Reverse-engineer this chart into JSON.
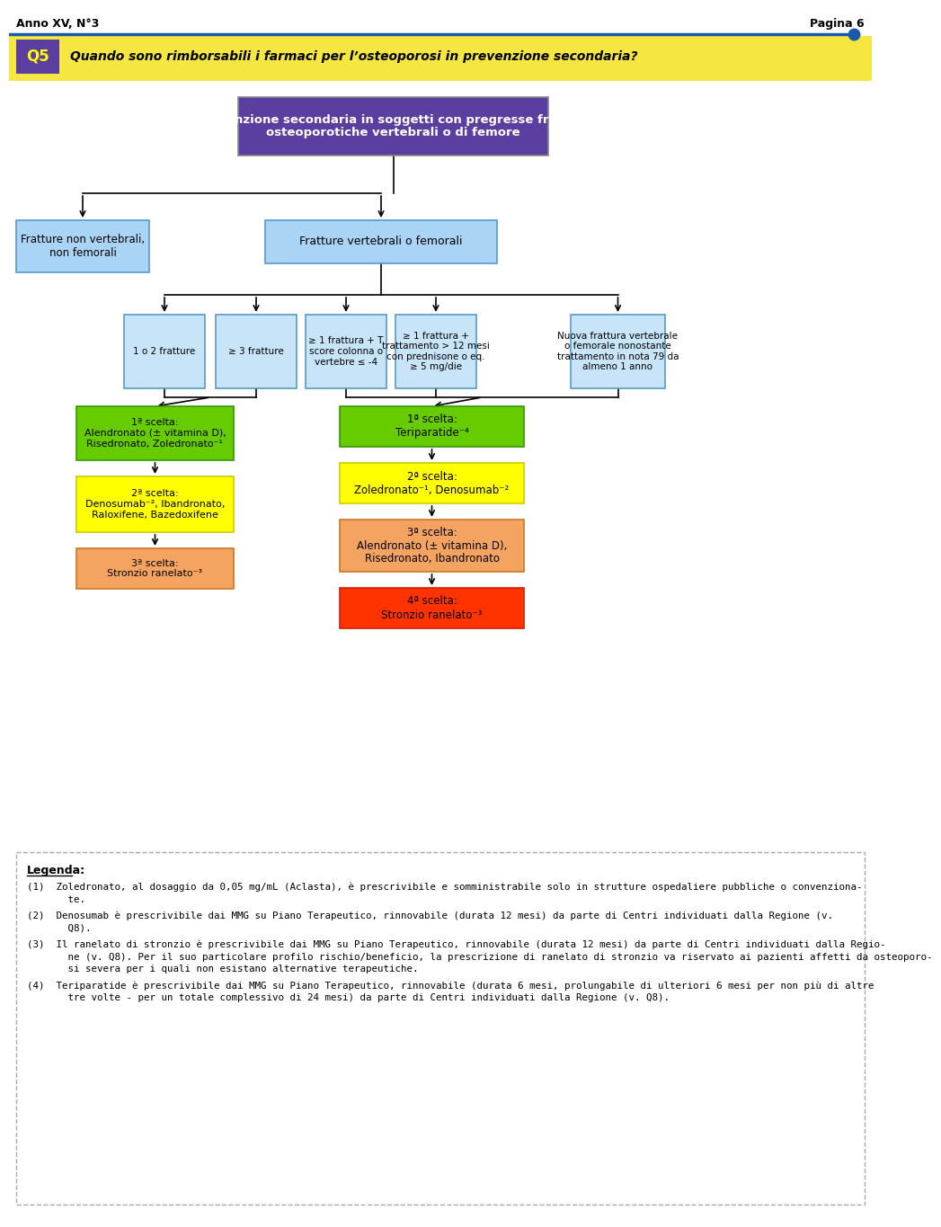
{
  "header_left": "Anno XV, N°3",
  "header_right": "Pagina 6",
  "question_label": "Q5",
  "question_text": "Quando sono rimborsabili i farmaci per l’osteoporosi in prevenzione secondaria?",
  "root_box": {
    "text": "Prevenzione secondaria in soggetti con pregresse fratture\nosteoporotiche vertebrali o di femore",
    "color": "#5b3fa0",
    "text_color": "#ffffff",
    "border_color": "#888888"
  },
  "level1_left": {
    "text": "Fratture non vertebrali,\nnon femorali",
    "color": "#aad4f5",
    "text_color": "#000000",
    "border_color": "#5599cc"
  },
  "level1_right": {
    "text": "Fratture vertebrali o femorali",
    "color": "#aad4f5",
    "text_color": "#000000",
    "border_color": "#5599cc"
  },
  "level2_boxes": [
    {
      "text": "1 o 2 fratture",
      "color": "#c8e4f8",
      "text_color": "#000000",
      "border_color": "#5599cc"
    },
    {
      "text": "≥ 3 fratture",
      "color": "#c8e4f8",
      "text_color": "#000000",
      "border_color": "#5599cc"
    },
    {
      "text": "≥ 1 frattura + T\nscore colonna o\nvertebre ≤ -4",
      "color": "#c8e4f8",
      "text_color": "#000000",
      "border_color": "#5599cc"
    },
    {
      "text": "≥ 1 frattura +\ntrattamento > 12 mesi\ncon prednisone o eq.\n≥ 5 mg/die",
      "color": "#c8e4f8",
      "text_color": "#000000",
      "border_color": "#5599cc"
    },
    {
      "text": "Nuova frattura vertebrale\no femorale nonostante\ntrattamento in nota 79 da\nalmeno 1 anno",
      "color": "#c8e4f8",
      "text_color": "#000000",
      "border_color": "#5599cc"
    }
  ],
  "left_chain": [
    {
      "text": "1ª scelta:\nAlendronato (± vitamina D),\nRisedronato, Zoledronato⁻¹",
      "color": "#66cc00",
      "text_color": "#000000",
      "border_color": "#339900"
    },
    {
      "text": "2ª scelta:\nDenosumab⁻², Ibandronato,\nRaloxifene, Bazedoxifene",
      "color": "#ffff00",
      "text_color": "#000000",
      "border_color": "#cccc00"
    },
    {
      "text": "3ª scelta:\nStronzio ranelato⁻³",
      "color": "#f4a460",
      "text_color": "#000000",
      "border_color": "#cc7722"
    }
  ],
  "right_chain": [
    {
      "text": "1ª scelta:\nTeriparatide⁻⁴",
      "color": "#66cc00",
      "text_color": "#000000",
      "border_color": "#339900"
    },
    {
      "text": "2ª scelta:\nZoledronato⁻¹, Denosumab⁻²",
      "color": "#ffff00",
      "text_color": "#000000",
      "border_color": "#cccc00"
    },
    {
      "text": "3ª scelta:\nAlendronato (± vitamina D),\nRisedronato, Ibandronato",
      "color": "#f4a460",
      "text_color": "#000000",
      "border_color": "#cc7722"
    },
    {
      "text": "4ª scelta:\nStronzio ranelato⁻³",
      "color": "#ff3300",
      "text_color": "#000000",
      "border_color": "#cc2200"
    }
  ],
  "legend_title": "Legenda:",
  "legend_items": [
    "(1)  Zoledronato, al dosaggio da 0,05 mg/mL (Aclasta), è prescrivibile e somministrabile solo in strutture ospedaliere pubbliche o convenziona-\n       te.",
    "(2)  Denosumab è prescrivibile dai MMG su Piano Terapeutico, rinnovabile (durata 12 mesi) da parte di Centri individuati dalla Regione (v.\n       Q8).",
    "(3)  Il ranelato di stronzio è prescrivibile dai MMG su Piano Terapeutico, rinnovabile (durata 12 mesi) da parte di Centri individuati dalla Regio-\n       ne (v. Q8). Per il suo particolare profilo rischio/beneficio, la prescrizione di ranelato di stronzio va riservato ai pazienti affetti da osteoporo-\n       si severa per i quali non esistano alternative terapeutiche.",
    "(4)  Teriparatide è prescrivibile dai MMG su Piano Terapeutico, rinnovabile (durata 6 mesi, prolungabile di ulteriori 6 mesi per non più di altre\n       tre volte - per un totale complessivo di 24 mesi) da parte di Centri individuati dalla Regione (v. Q8)."
  ],
  "bg_color": "#ffffff",
  "header_bar_color": "#f5e642",
  "blue_line_color": "#1a5aaa",
  "q5_box_color": "#5b3fa0",
  "q5_text_color": "#ffff00"
}
